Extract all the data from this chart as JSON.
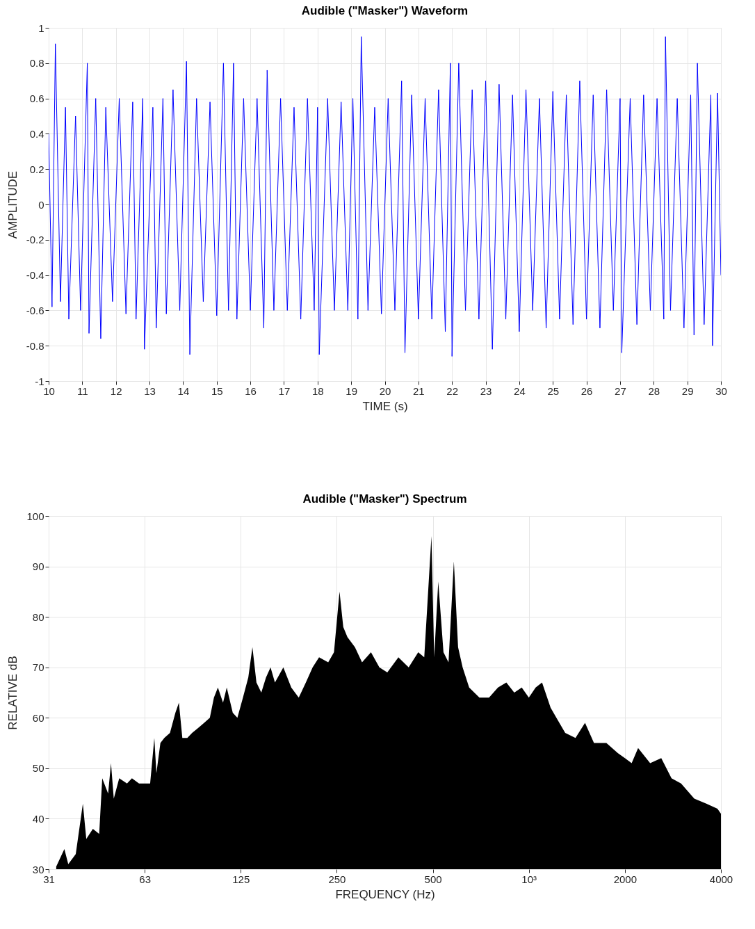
{
  "chart_data": [
    {
      "type": "line",
      "title": "Audible (\"Masker\") Waveform",
      "xlabel": "TIME (s)",
      "ylabel": "AMPLITUDE",
      "xlim": [
        10,
        30
      ],
      "xticks": [
        10,
        11,
        12,
        13,
        14,
        15,
        16,
        17,
        18,
        19,
        20,
        21,
        22,
        23,
        24,
        25,
        26,
        27,
        28,
        29,
        30
      ],
      "ylim": [
        -1,
        1
      ],
      "yticks": [
        -1,
        -0.8,
        -0.6,
        -0.4,
        -0.2,
        0,
        0.2,
        0.4,
        0.6,
        0.8,
        1
      ],
      "grid": true,
      "series": [
        {
          "color": "#0000ff",
          "x": [
            10.0,
            10.1,
            10.2,
            10.35,
            10.5,
            10.6,
            10.8,
            10.95,
            11.15,
            11.2,
            11.4,
            11.55,
            11.7,
            11.9,
            12.1,
            12.3,
            12.5,
            12.6,
            12.8,
            12.85,
            13.1,
            13.2,
            13.4,
            13.5,
            13.7,
            13.9,
            14.1,
            14.2,
            14.4,
            14.6,
            14.8,
            15.0,
            15.2,
            15.35,
            15.5,
            15.6,
            15.8,
            16.0,
            16.2,
            16.4,
            16.5,
            16.7,
            16.9,
            17.1,
            17.3,
            17.5,
            17.7,
            17.9,
            18.0,
            18.05,
            18.3,
            18.5,
            18.7,
            18.9,
            19.05,
            19.2,
            19.3,
            19.5,
            19.7,
            19.9,
            20.1,
            20.3,
            20.5,
            20.6,
            20.8,
            21.0,
            21.2,
            21.4,
            21.6,
            21.8,
            21.95,
            22.0,
            22.2,
            22.4,
            22.6,
            22.8,
            23.0,
            23.2,
            23.4,
            23.6,
            23.8,
            24.0,
            24.2,
            24.4,
            24.6,
            24.8,
            25.0,
            25.2,
            25.4,
            25.6,
            25.8,
            26.0,
            26.2,
            26.4,
            26.6,
            26.8,
            27.0,
            27.05,
            27.3,
            27.5,
            27.7,
            27.9,
            28.1,
            28.3,
            28.35,
            28.5,
            28.7,
            28.9,
            29.1,
            29.2,
            29.3,
            29.5,
            29.7,
            29.75,
            29.9,
            30.0
          ],
          "values": [
            0.4,
            -0.58,
            0.91,
            -0.55,
            0.55,
            -0.65,
            0.5,
            -0.6,
            0.8,
            -0.73,
            0.6,
            -0.76,
            0.55,
            -0.55,
            0.6,
            -0.62,
            0.58,
            -0.65,
            0.6,
            -0.82,
            0.55,
            -0.7,
            0.6,
            -0.62,
            0.65,
            -0.6,
            0.81,
            -0.85,
            0.6,
            -0.55,
            0.58,
            -0.63,
            0.8,
            -0.6,
            0.8,
            -0.65,
            0.6,
            -0.6,
            0.6,
            -0.7,
            0.76,
            -0.6,
            0.6,
            -0.6,
            0.55,
            -0.65,
            0.6,
            -0.6,
            0.55,
            -0.85,
            0.6,
            -0.6,
            0.58,
            -0.6,
            0.6,
            -0.65,
            0.95,
            -0.6,
            0.55,
            -0.62,
            0.6,
            -0.6,
            0.7,
            -0.84,
            0.62,
            -0.65,
            0.6,
            -0.65,
            0.65,
            -0.72,
            0.8,
            -0.86,
            0.8,
            -0.6,
            0.65,
            -0.65,
            0.7,
            -0.82,
            0.68,
            -0.65,
            0.62,
            -0.72,
            0.65,
            -0.6,
            0.6,
            -0.7,
            0.64,
            -0.65,
            0.62,
            -0.68,
            0.7,
            -0.65,
            0.62,
            -0.7,
            0.65,
            -0.6,
            0.6,
            -0.84,
            0.6,
            -0.68,
            0.62,
            -0.6,
            0.6,
            -0.65,
            0.95,
            -0.6,
            0.6,
            -0.7,
            0.62,
            -0.74,
            0.8,
            -0.68,
            0.62,
            -0.8,
            0.63,
            -0.4
          ]
        }
      ]
    },
    {
      "type": "area",
      "title": "Audible (\"Masker\") Spectrum",
      "xlabel": "FREQUENCY (Hz)",
      "ylabel": "RELATIVE dB",
      "log": "x",
      "xlim": [
        31.25,
        4000
      ],
      "xticks": [
        {
          "value": 31.25,
          "label": "31"
        },
        {
          "value": 62.5,
          "label": "63"
        },
        125,
        250,
        500,
        {
          "value": 1000,
          "label": "10³"
        },
        2000,
        4000
      ],
      "ylim": [
        30,
        100
      ],
      "yticks": [
        30,
        40,
        50,
        60,
        70,
        80,
        90,
        100
      ],
      "grid": true,
      "series": [
        {
          "color": "#000000",
          "x": [
            33,
            35,
            36,
            38,
            40,
            41,
            43,
            45,
            46,
            48,
            49,
            50,
            52,
            55,
            57,
            60,
            63,
            65,
            67,
            68,
            70,
            72,
            75,
            78,
            80,
            82,
            85,
            88,
            92,
            96,
            100,
            103,
            106,
            110,
            113,
            118,
            122,
            127,
            132,
            136,
            140,
            145,
            150,
            155,
            160,
            170,
            180,
            190,
            200,
            210,
            220,
            235,
            245,
            255,
            262,
            270,
            285,
            300,
            320,
            340,
            360,
            390,
            420,
            450,
            470,
            495,
            505,
            520,
            540,
            560,
            582,
            600,
            620,
            650,
            700,
            750,
            800,
            850,
            900,
            950,
            1000,
            1050,
            1100,
            1170,
            1220,
            1300,
            1400,
            1500,
            1600,
            1750,
            1900,
            2000,
            2100,
            2200,
            2400,
            2600,
            2800,
            3000,
            3300,
            3600,
            3900,
            4000
          ],
          "values": [
            30.5,
            34,
            31,
            33,
            43,
            36,
            38,
            37,
            48,
            45,
            51,
            44,
            48,
            47,
            48,
            47,
            47,
            47,
            56,
            49,
            55,
            56,
            57,
            61,
            63,
            56,
            56,
            57,
            58,
            59,
            60,
            64,
            66,
            63,
            66,
            61,
            60,
            64,
            68,
            74,
            67,
            65,
            68,
            70,
            67,
            70,
            66,
            64,
            67,
            70,
            72,
            71,
            73,
            85,
            78,
            76,
            74,
            71,
            73,
            70,
            69,
            72,
            70,
            73,
            72,
            96,
            72,
            87,
            73,
            71,
            91,
            74,
            70,
            66,
            64,
            64,
            66,
            67,
            65,
            66,
            64,
            66,
            67,
            62,
            60,
            57,
            56,
            59,
            55,
            55,
            53,
            52,
            51,
            54,
            51,
            52,
            48,
            47,
            44,
            43,
            42,
            41
          ]
        }
      ]
    }
  ]
}
